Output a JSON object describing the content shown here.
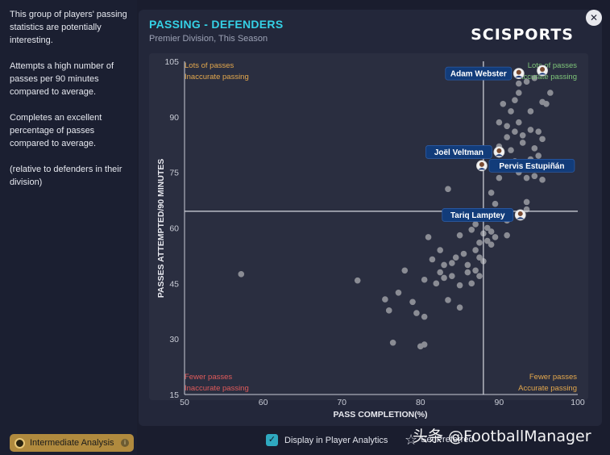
{
  "sidebar": {
    "paragraphs": [
      "This group of players' passing statistics are potentially interesting.",
      "Attempts a high number of passes per 90 minutes compared to average.",
      "Completes an excellent percentage of passes compared to average.",
      "(relative to defenders in their division)"
    ],
    "analysis_badge": "Intermediate Analysis"
  },
  "panel": {
    "title": "PASSING - DEFENDERS",
    "subtitle": "Premier Division, This Season",
    "logo": "SCISPORTS"
  },
  "close_icon": "close-icon",
  "footer": {
    "checkbox_label": "Display in Player Analytics",
    "star_label": "Set Preferred",
    "watermark": "头条 @FootballManager"
  },
  "colors": {
    "accent": "#35d1e6",
    "quadrant_green": "#7fc67a",
    "quadrant_orange": "#e4a84d",
    "quadrant_red": "#e05b5b",
    "point": "#8a8c94",
    "label_bg": "#123c7a"
  },
  "chart_data": {
    "type": "scatter",
    "xlabel": "PASS COMPLETION(%)",
    "ylabel": "PASSES ATTEMPTED/90 MINUTES",
    "xlim": [
      50,
      100
    ],
    "ylim": [
      15,
      105
    ],
    "xticks": [
      50,
      60,
      70,
      80,
      90,
      100
    ],
    "yticks": [
      15,
      30,
      45,
      60,
      75,
      90,
      105
    ],
    "x_avg": 88,
    "y_avg": 64.5,
    "quadrants": {
      "top_left": [
        "Lots of passes",
        "Inaccurate passing"
      ],
      "top_right": [
        "Lots of passes",
        "Accurate passing"
      ],
      "bottom_left": [
        "Fewer passes",
        "Inaccurate passing"
      ],
      "bottom_right": [
        "Fewer passes",
        "Accurate passing"
      ]
    },
    "highlighted": [
      {
        "name": "Adam Webster",
        "x": 92.5,
        "y": 101.7
      },
      {
        "name": "Joël Veltman",
        "x": 90,
        "y": 80.5
      },
      {
        "name": "Pervis Estupiñán",
        "x": 87.8,
        "y": 76.8
      },
      {
        "name": "Tariq Lamptey",
        "x": 92.7,
        "y": 63.5
      }
    ],
    "extra_avatar": {
      "x": 95.5,
      "y": 102.5
    },
    "points": [
      [
        57.2,
        47.5
      ],
      [
        72,
        45.8
      ],
      [
        75.5,
        40.7
      ],
      [
        76,
        37.7
      ],
      [
        76.5,
        29
      ],
      [
        77.2,
        42.5
      ],
      [
        78,
        48.5
      ],
      [
        79,
        40
      ],
      [
        79.5,
        37
      ],
      [
        80,
        28
      ],
      [
        80.5,
        28.5
      ],
      [
        80.5,
        36
      ],
      [
        80.5,
        46
      ],
      [
        81,
        57.5
      ],
      [
        81.5,
        51.5
      ],
      [
        82,
        45
      ],
      [
        82.5,
        48
      ],
      [
        82.5,
        54
      ],
      [
        83,
        50
      ],
      [
        83,
        46.5
      ],
      [
        83.5,
        40.5
      ],
      [
        83.5,
        70.5
      ],
      [
        84,
        47
      ],
      [
        84,
        50.5
      ],
      [
        84.5,
        52
      ],
      [
        85,
        38.5
      ],
      [
        85,
        44.5
      ],
      [
        85,
        58
      ],
      [
        85.5,
        53
      ],
      [
        86,
        48
      ],
      [
        86,
        50
      ],
      [
        86.5,
        59.5
      ],
      [
        86.5,
        45
      ],
      [
        87,
        48.5
      ],
      [
        87,
        54
      ],
      [
        87,
        61
      ],
      [
        87.5,
        56
      ],
      [
        87.5,
        52
      ],
      [
        87.5,
        47
      ],
      [
        88,
        58.5
      ],
      [
        88,
        63
      ],
      [
        88,
        51
      ],
      [
        88.5,
        56.5
      ],
      [
        88.5,
        60
      ],
      [
        89,
        55.5
      ],
      [
        89,
        59
      ],
      [
        89,
        69.5
      ],
      [
        89.5,
        66.5
      ],
      [
        89.5,
        57.5
      ],
      [
        90,
        88.5
      ],
      [
        90,
        82
      ],
      [
        90,
        73.5
      ],
      [
        90.5,
        77.5
      ],
      [
        91,
        58
      ],
      [
        91,
        62
      ],
      [
        91,
        84.5
      ],
      [
        91,
        87.5
      ],
      [
        91.5,
        81
      ],
      [
        92,
        86
      ],
      [
        92,
        78
      ],
      [
        92.5,
        75
      ],
      [
        92.5,
        88.5
      ],
      [
        93,
        85
      ],
      [
        93,
        83
      ],
      [
        93,
        76.5
      ],
      [
        93.5,
        67
      ],
      [
        93.5,
        65
      ],
      [
        93.5,
        73.5
      ],
      [
        94,
        86.5
      ],
      [
        94,
        78.5
      ],
      [
        94.5,
        74
      ],
      [
        94.5,
        81.5
      ],
      [
        95,
        86
      ],
      [
        95,
        79.5
      ],
      [
        95.5,
        84
      ],
      [
        95.5,
        73
      ],
      [
        96,
        76
      ],
      [
        96,
        93.5
      ],
      [
        95.5,
        94
      ],
      [
        96.5,
        96.5
      ],
      [
        92.5,
        99
      ],
      [
        93.5,
        99.5
      ],
      [
        94.5,
        100.5
      ],
      [
        92,
        94.5
      ],
      [
        92.5,
        96.5
      ],
      [
        91.5,
        91.5
      ],
      [
        94,
        91.5
      ],
      [
        90.5,
        93.5
      ]
    ]
  }
}
